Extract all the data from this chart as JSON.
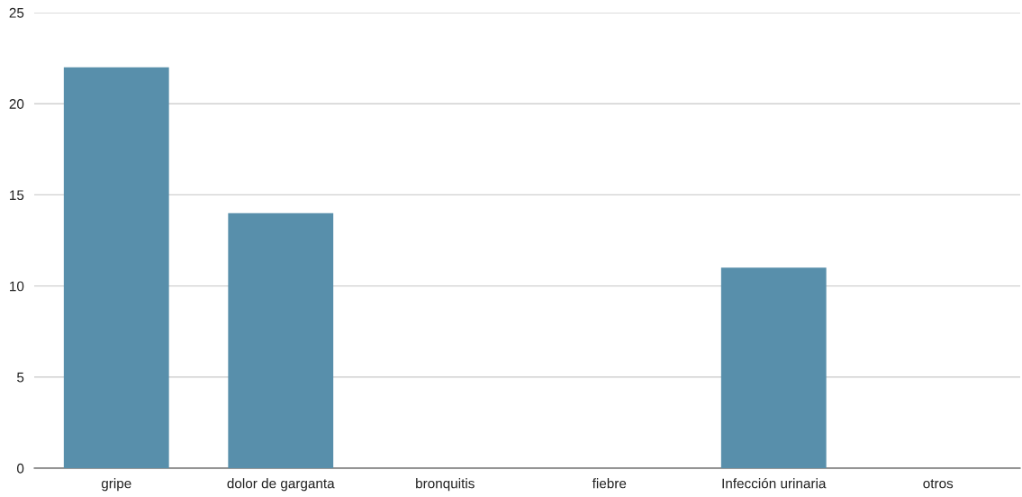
{
  "chart_data": {
    "type": "bar",
    "categories": [
      "gripe",
      "dolor de garganta",
      "bronquitis",
      "fiebre",
      "Infección urinaria",
      "otros"
    ],
    "values": [
      22,
      14,
      0,
      0,
      11,
      0
    ],
    "color": "#588fab",
    "ylim": [
      0,
      25
    ],
    "yticks": [
      0,
      5,
      10,
      15,
      20,
      25
    ],
    "grid": "y"
  }
}
